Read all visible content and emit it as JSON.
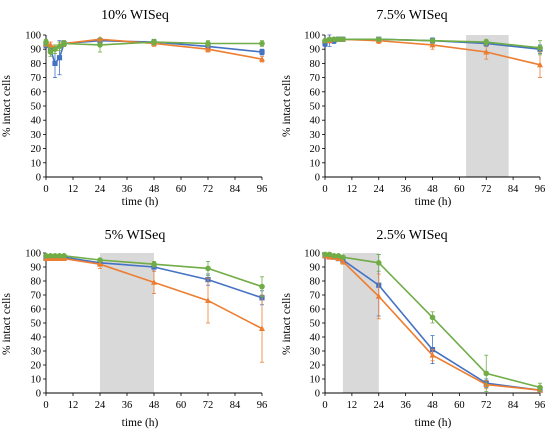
{
  "chart_data": [
    {
      "type": "line",
      "title": "10% WISeq",
      "xlabel": "time (h)",
      "ylabel": "% intact cells",
      "xlim": [
        0,
        96
      ],
      "ylim": [
        0,
        100
      ],
      "xticks": [
        0,
        12,
        24,
        36,
        48,
        60,
        72,
        84,
        96
      ],
      "yticks": [
        0,
        10,
        20,
        30,
        40,
        50,
        60,
        70,
        80,
        90,
        100
      ],
      "shade": null,
      "series": [
        {
          "color": "#4472c4",
          "marker": "square",
          "x": [
            0,
            2,
            4,
            6,
            8,
            24,
            48,
            72,
            96
          ],
          "y": [
            93,
            90,
            80,
            84,
            94,
            96,
            95,
            92,
            88
          ],
          "err": [
            2,
            3,
            10,
            12,
            2,
            1,
            1,
            2,
            2
          ]
        },
        {
          "color": "#ed7d31",
          "marker": "triangle",
          "x": [
            0,
            2,
            4,
            6,
            8,
            24,
            48,
            72,
            96
          ],
          "y": [
            94,
            93,
            91,
            93,
            94,
            97,
            94,
            90,
            83
          ],
          "err": [
            2,
            2,
            2,
            2,
            2,
            1,
            2,
            2,
            2
          ]
        },
        {
          "color": "#70ad47",
          "marker": "circle",
          "x": [
            0,
            2,
            4,
            6,
            8,
            24,
            48,
            72,
            96
          ],
          "y": [
            95,
            88,
            90,
            92,
            94,
            93,
            95,
            94,
            94
          ],
          "err": [
            2,
            3,
            3,
            3,
            2,
            5,
            2,
            2,
            2
          ]
        }
      ]
    },
    {
      "type": "line",
      "title": "7.5% WISeq",
      "xlabel": "time (h)",
      "ylabel": "% intact cells",
      "xlim": [
        0,
        96
      ],
      "ylim": [
        0,
        100
      ],
      "xticks": [
        0,
        12,
        24,
        36,
        48,
        60,
        72,
        84,
        96
      ],
      "yticks": [
        0,
        10,
        20,
        30,
        40,
        50,
        60,
        70,
        80,
        90,
        100
      ],
      "shade": [
        63,
        82
      ],
      "series": [
        {
          "color": "#4472c4",
          "marker": "square",
          "x": [
            0,
            2,
            4,
            6,
            8,
            24,
            48,
            72,
            96
          ],
          "y": [
            94,
            96,
            96,
            97,
            97,
            97,
            96,
            94,
            90
          ],
          "err": [
            2,
            4,
            2,
            1,
            1,
            1,
            2,
            2,
            3
          ]
        },
        {
          "color": "#ed7d31",
          "marker": "triangle",
          "x": [
            0,
            2,
            4,
            6,
            8,
            24,
            48,
            72,
            96
          ],
          "y": [
            96,
            96,
            97,
            97,
            97,
            96,
            93,
            88,
            79
          ],
          "err": [
            1,
            1,
            1,
            1,
            1,
            2,
            3,
            5,
            9
          ]
        },
        {
          "color": "#70ad47",
          "marker": "circle",
          "x": [
            0,
            2,
            4,
            6,
            8,
            24,
            48,
            72,
            96
          ],
          "y": [
            96,
            97,
            97,
            97,
            97,
            97,
            96,
            95,
            91
          ],
          "err": [
            1,
            1,
            1,
            1,
            1,
            1,
            1,
            2,
            5
          ]
        }
      ]
    },
    {
      "type": "line",
      "title": "5% WISeq",
      "xlabel": "time (h)",
      "ylabel": "% intact cells",
      "xlim": [
        0,
        96
      ],
      "ylim": [
        0,
        100
      ],
      "xticks": [
        0,
        12,
        24,
        36,
        48,
        60,
        72,
        84,
        96
      ],
      "yticks": [
        0,
        10,
        20,
        30,
        40,
        50,
        60,
        70,
        80,
        90,
        100
      ],
      "shade": [
        24,
        48
      ],
      "series": [
        {
          "color": "#4472c4",
          "marker": "square",
          "x": [
            0,
            2,
            4,
            6,
            8,
            24,
            48,
            72,
            96
          ],
          "y": [
            97,
            97,
            97,
            97,
            97,
            93,
            90,
            81,
            68
          ],
          "err": [
            1,
            1,
            1,
            1,
            1,
            2,
            3,
            4,
            5
          ]
        },
        {
          "color": "#ed7d31",
          "marker": "triangle",
          "x": [
            0,
            2,
            4,
            6,
            8,
            24,
            48,
            72,
            96
          ],
          "y": [
            96,
            96,
            96,
            96,
            96,
            92,
            79,
            66,
            46
          ],
          "err": [
            1,
            1,
            1,
            1,
            1,
            3,
            8,
            16,
            24
          ]
        },
        {
          "color": "#70ad47",
          "marker": "circle",
          "x": [
            0,
            2,
            4,
            6,
            8,
            24,
            48,
            72,
            96
          ],
          "y": [
            98,
            98,
            98,
            98,
            98,
            95,
            92,
            89,
            76
          ],
          "err": [
            1,
            1,
            1,
            1,
            1,
            1,
            2,
            5,
            7
          ]
        }
      ]
    },
    {
      "type": "line",
      "title": "2.5% WISeq",
      "xlabel": "time (h)",
      "ylabel": "% intact cells",
      "xlim": [
        0,
        96
      ],
      "ylim": [
        0,
        100
      ],
      "xticks": [
        0,
        12,
        24,
        36,
        48,
        60,
        72,
        84,
        96
      ],
      "yticks": [
        0,
        10,
        20,
        30,
        40,
        50,
        60,
        70,
        80,
        90,
        100
      ],
      "shade": [
        8,
        24
      ],
      "series": [
        {
          "color": "#4472c4",
          "marker": "square",
          "x": [
            0,
            2,
            4,
            6,
            8,
            24,
            48,
            72,
            96
          ],
          "y": [
            98,
            98,
            97,
            96,
            95,
            77,
            31,
            7,
            2
          ],
          "err": [
            1,
            1,
            1,
            1,
            2,
            22,
            10,
            3,
            1
          ]
        },
        {
          "color": "#ed7d31",
          "marker": "triangle",
          "x": [
            0,
            2,
            4,
            6,
            8,
            24,
            48,
            72,
            96
          ],
          "y": [
            98,
            97,
            97,
            96,
            94,
            69,
            27,
            6,
            2
          ],
          "err": [
            1,
            1,
            1,
            1,
            2,
            16,
            4,
            3,
            1
          ]
        },
        {
          "color": "#70ad47",
          "marker": "circle",
          "x": [
            0,
            2,
            4,
            6,
            8,
            24,
            48,
            72,
            96
          ],
          "y": [
            99,
            99,
            98,
            98,
            97,
            93,
            54,
            14,
            4
          ],
          "err": [
            1,
            1,
            1,
            1,
            1,
            6,
            4,
            13,
            3
          ]
        }
      ]
    }
  ]
}
